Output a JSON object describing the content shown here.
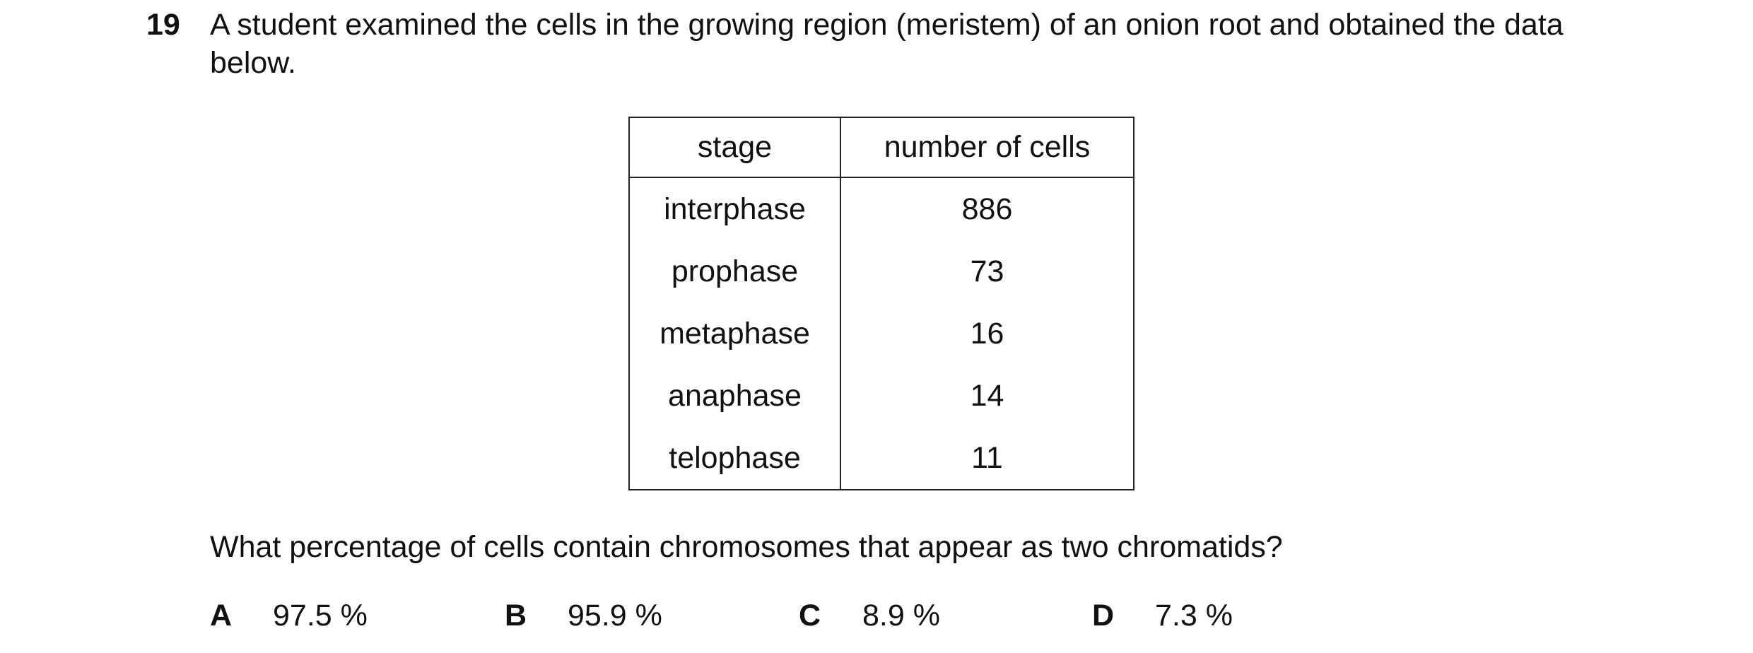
{
  "question": {
    "number": "19",
    "text": "A student examined the cells in the growing region (meristem) of an onion root and obtained the data below.",
    "table": {
      "header": [
        "stage",
        "number of cells"
      ],
      "rows": [
        [
          "interphase",
          "886"
        ],
        [
          "prophase",
          "73"
        ],
        [
          "metaphase",
          "16"
        ],
        [
          "anaphase",
          "14"
        ],
        [
          "telophase",
          "11"
        ]
      ]
    },
    "prompt": "What percentage of cells contain chromosomes that appear as two chromatids?",
    "options": [
      {
        "letter": "A",
        "text": "97.5 %"
      },
      {
        "letter": "B",
        "text": "95.9 %"
      },
      {
        "letter": "C",
        "text": "8.9 %"
      },
      {
        "letter": "D",
        "text": "7.3 %"
      }
    ]
  }
}
